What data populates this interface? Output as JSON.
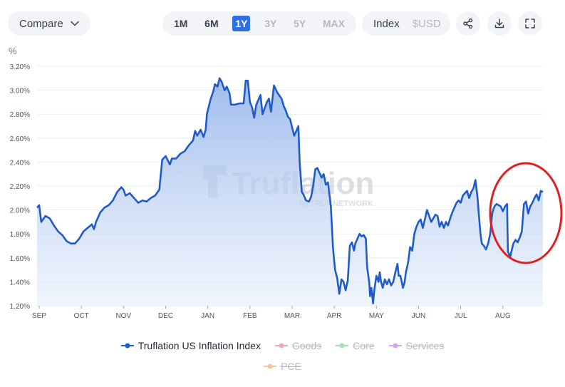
{
  "toolbar": {
    "compare_label": "Compare",
    "ranges": [
      {
        "label": "1M",
        "state": "dark"
      },
      {
        "label": "6M",
        "state": "dark"
      },
      {
        "label": "1Y",
        "state": "active"
      },
      {
        "label": "3Y",
        "state": "off"
      },
      {
        "label": "5Y",
        "state": "off"
      },
      {
        "label": "MAX",
        "state": "off"
      }
    ],
    "mode_index": "Index",
    "mode_usd": "$USD",
    "icons": [
      "share-icon",
      "download-icon",
      "fullscreen-icon"
    ]
  },
  "chart_data": {
    "type": "area",
    "ylabel": "%",
    "yticks": [
      "1.20%",
      "1.40%",
      "1.60%",
      "1.80%",
      "2.00%",
      "2.20%",
      "2.40%",
      "2.60%",
      "2.80%",
      "3.00%",
      "3.20%"
    ],
    "ylim": [
      1.2,
      3.2
    ],
    "xticks": [
      "SEP",
      "OCT",
      "NOV",
      "DEC",
      "JAN",
      "FEB",
      "MAR",
      "APR",
      "MAY",
      "JUN",
      "JUL",
      "AUG"
    ],
    "grid": "horizontal",
    "line_color": "#1f5bc9",
    "watermark": {
      "brand": "Truflation",
      "byline": "by TRUF.NETWORK"
    },
    "annotation": "red circle around August segment",
    "series": [
      {
        "name": "Truflation US Inflation Index",
        "visible": true,
        "color": "#1f5bc9",
        "points": [
          [
            0.0,
            2.02
          ],
          [
            0.05,
            2.04
          ],
          [
            0.1,
            1.9
          ],
          [
            0.2,
            1.95
          ],
          [
            0.3,
            1.93
          ],
          [
            0.4,
            1.87
          ],
          [
            0.5,
            1.82
          ],
          [
            0.6,
            1.79
          ],
          [
            0.7,
            1.74
          ],
          [
            0.8,
            1.72
          ],
          [
            0.9,
            1.72
          ],
          [
            1.0,
            1.76
          ],
          [
            1.1,
            1.82
          ],
          [
            1.2,
            1.85
          ],
          [
            1.3,
            1.88
          ],
          [
            1.35,
            1.84
          ],
          [
            1.4,
            1.9
          ],
          [
            1.5,
            1.98
          ],
          [
            1.6,
            2.02
          ],
          [
            1.7,
            2.04
          ],
          [
            1.8,
            2.08
          ],
          [
            1.9,
            2.15
          ],
          [
            2.0,
            2.19
          ],
          [
            2.05,
            2.17
          ],
          [
            2.1,
            2.12
          ],
          [
            2.2,
            2.14
          ],
          [
            2.3,
            2.1
          ],
          [
            2.4,
            2.06
          ],
          [
            2.5,
            2.08
          ],
          [
            2.6,
            2.07
          ],
          [
            2.7,
            2.1
          ],
          [
            2.8,
            2.12
          ],
          [
            2.9,
            2.17
          ],
          [
            2.97,
            2.42
          ],
          [
            3.05,
            2.45
          ],
          [
            3.15,
            2.38
          ],
          [
            3.2,
            2.43
          ],
          [
            3.3,
            2.43
          ],
          [
            3.4,
            2.47
          ],
          [
            3.5,
            2.49
          ],
          [
            3.6,
            2.54
          ],
          [
            3.7,
            2.58
          ],
          [
            3.75,
            2.66
          ],
          [
            3.8,
            2.62
          ],
          [
            3.88,
            2.67
          ],
          [
            3.95,
            2.61
          ],
          [
            4.0,
            2.67
          ],
          [
            4.03,
            2.8
          ],
          [
            4.07,
            2.86
          ],
          [
            4.12,
            2.93
          ],
          [
            4.18,
            2.99
          ],
          [
            4.22,
            3.05
          ],
          [
            4.28,
            3.03
          ],
          [
            4.33,
            3.1
          ],
          [
            4.38,
            3.07
          ],
          [
            4.45,
            3.0
          ],
          [
            4.5,
            3.03
          ],
          [
            4.57,
            2.97
          ],
          [
            4.6,
            2.88
          ],
          [
            4.7,
            2.88
          ],
          [
            4.8,
            2.89
          ],
          [
            4.9,
            2.89
          ],
          [
            4.95,
            3.08
          ],
          [
            5.0,
            3.08
          ],
          [
            5.05,
            2.9
          ],
          [
            5.1,
            2.86
          ],
          [
            5.15,
            2.77
          ],
          [
            5.2,
            2.88
          ],
          [
            5.3,
            2.96
          ],
          [
            5.35,
            2.8
          ],
          [
            5.4,
            2.85
          ],
          [
            5.45,
            2.9
          ],
          [
            5.5,
            2.93
          ],
          [
            5.55,
            2.82
          ],
          [
            5.62,
            3.04
          ],
          [
            5.7,
            2.98
          ],
          [
            5.8,
            2.93
          ],
          [
            5.85,
            2.87
          ],
          [
            5.9,
            2.83
          ],
          [
            5.95,
            2.78
          ],
          [
            6.0,
            2.76
          ],
          [
            6.05,
            2.69
          ],
          [
            6.1,
            2.62
          ],
          [
            6.15,
            2.66
          ],
          [
            6.2,
            2.7
          ],
          [
            6.23,
            2.4
          ],
          [
            6.28,
            2.15
          ],
          [
            6.32,
            2.13
          ],
          [
            6.38,
            2.08
          ],
          [
            6.45,
            2.07
          ],
          [
            6.5,
            2.11
          ],
          [
            6.55,
            2.2
          ],
          [
            6.6,
            2.34
          ],
          [
            6.65,
            2.35
          ],
          [
            6.7,
            2.31
          ],
          [
            6.75,
            2.27
          ],
          [
            6.8,
            2.3
          ],
          [
            6.85,
            2.21
          ],
          [
            6.9,
            2.23
          ],
          [
            6.97,
            2.03
          ],
          [
            7.02,
            1.69
          ],
          [
            7.07,
            1.5
          ],
          [
            7.12,
            1.43
          ],
          [
            7.17,
            1.3
          ],
          [
            7.22,
            1.42
          ],
          [
            7.27,
            1.4
          ],
          [
            7.32,
            1.33
          ],
          [
            7.37,
            1.41
          ],
          [
            7.42,
            1.7
          ],
          [
            7.47,
            1.73
          ],
          [
            7.52,
            1.66
          ],
          [
            7.55,
            1.72
          ],
          [
            7.6,
            1.76
          ],
          [
            7.65,
            1.8
          ],
          [
            7.7,
            1.78
          ],
          [
            7.75,
            1.79
          ],
          [
            7.8,
            1.76
          ],
          [
            7.83,
            1.52
          ],
          [
            7.88,
            1.4
          ],
          [
            7.9,
            1.28
          ],
          [
            7.93,
            1.35
          ],
          [
            7.97,
            1.22
          ],
          [
            8.0,
            1.33
          ],
          [
            8.05,
            1.45
          ],
          [
            8.1,
            1.4
          ],
          [
            8.13,
            1.48
          ],
          [
            8.16,
            1.4
          ],
          [
            8.2,
            1.35
          ],
          [
            8.25,
            1.42
          ],
          [
            8.3,
            1.38
          ],
          [
            8.35,
            1.42
          ],
          [
            8.4,
            1.37
          ],
          [
            8.45,
            1.4
          ],
          [
            8.5,
            1.48
          ],
          [
            8.55,
            1.55
          ],
          [
            8.58,
            1.45
          ],
          [
            8.62,
            1.45
          ],
          [
            8.68,
            1.35
          ],
          [
            8.72,
            1.4
          ],
          [
            8.75,
            1.48
          ],
          [
            8.8,
            1.56
          ],
          [
            8.85,
            1.69
          ],
          [
            8.9,
            1.66
          ],
          [
            8.95,
            1.8
          ],
          [
            9.0,
            1.86
          ],
          [
            9.05,
            1.9
          ],
          [
            9.1,
            1.92
          ],
          [
            9.15,
            1.85
          ],
          [
            9.2,
            1.92
          ],
          [
            9.25,
            2.0
          ],
          [
            9.3,
            1.95
          ],
          [
            9.35,
            1.9
          ],
          [
            9.4,
            1.93
          ],
          [
            9.45,
            1.96
          ],
          [
            9.5,
            1.95
          ],
          [
            9.55,
            1.86
          ],
          [
            9.6,
            1.9
          ],
          [
            9.65,
            1.85
          ],
          [
            9.7,
            1.9
          ],
          [
            9.75,
            1.87
          ],
          [
            9.8,
            1.93
          ],
          [
            9.85,
            1.98
          ],
          [
            9.9,
            2.02
          ],
          [
            9.95,
            2.06
          ],
          [
            10.0,
            2.08
          ],
          [
            10.05,
            2.06
          ],
          [
            10.1,
            2.12
          ],
          [
            10.15,
            2.14
          ],
          [
            10.2,
            2.16
          ],
          [
            10.25,
            2.1
          ],
          [
            10.3,
            2.15
          ],
          [
            10.35,
            2.18
          ],
          [
            10.4,
            2.25
          ],
          [
            10.45,
            2.1
          ],
          [
            10.48,
            1.96
          ],
          [
            10.52,
            1.8
          ],
          [
            10.55,
            1.72
          ],
          [
            10.6,
            1.7
          ],
          [
            10.65,
            1.67
          ],
          [
            10.7,
            1.72
          ],
          [
            10.75,
            1.8
          ],
          [
            10.8,
            1.98
          ],
          [
            10.85,
            2.03
          ],
          [
            10.9,
            2.05
          ],
          [
            10.95,
            2.04
          ],
          [
            11.0,
            2.03
          ],
          [
            11.05,
            1.99
          ],
          [
            11.1,
            2.03
          ],
          [
            11.15,
            2.05
          ],
          [
            11.17,
            1.65
          ],
          [
            11.2,
            1.63
          ],
          [
            11.22,
            1.6
          ],
          [
            11.25,
            1.65
          ],
          [
            11.3,
            1.72
          ],
          [
            11.35,
            1.75
          ],
          [
            11.4,
            1.73
          ],
          [
            11.45,
            1.77
          ],
          [
            11.5,
            1.82
          ],
          [
            11.55,
            2.05
          ],
          [
            11.6,
            2.07
          ],
          [
            11.65,
            1.97
          ],
          [
            11.7,
            2.03
          ],
          [
            11.75,
            2.06
          ],
          [
            11.8,
            2.1
          ],
          [
            11.85,
            2.13
          ],
          [
            11.9,
            2.08
          ],
          [
            11.95,
            2.16
          ],
          [
            12.0,
            2.15
          ]
        ]
      }
    ]
  },
  "legend": {
    "row1": [
      {
        "label": "Truflation US Inflation Index",
        "color": "#1f5bc9",
        "state": "on"
      },
      {
        "label": "Goods",
        "color": "#f3a9ae",
        "state": "off"
      },
      {
        "label": "Core",
        "color": "#a7e0b2",
        "state": "off"
      },
      {
        "label": "Services",
        "color": "#d7a6e6",
        "state": "off"
      }
    ],
    "row2": [
      {
        "label": "PCE",
        "color": "#f3c8a0",
        "state": "off"
      }
    ]
  }
}
